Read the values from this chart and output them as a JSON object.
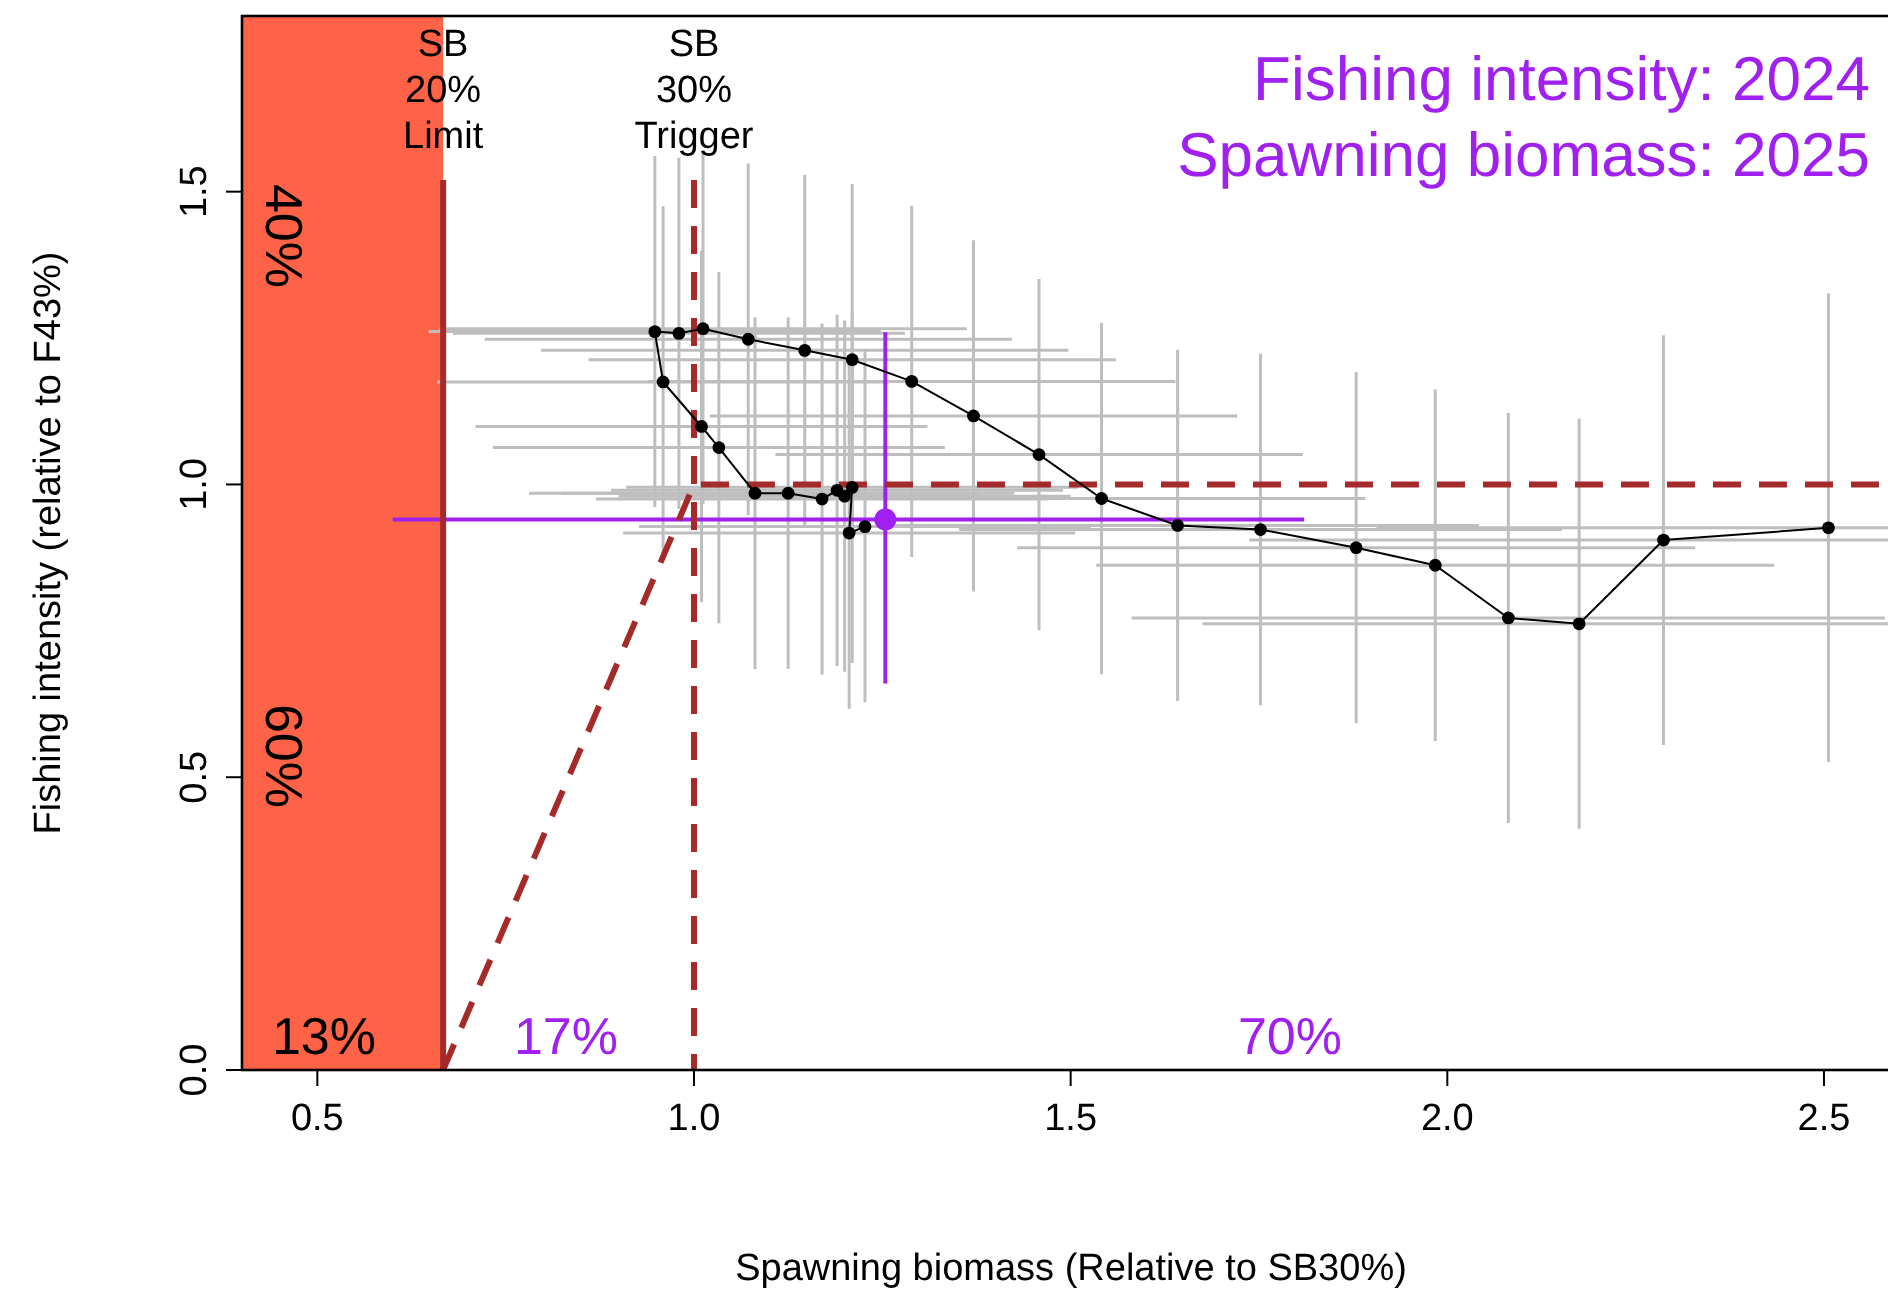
{
  "chart_data": {
    "type": "scatter",
    "title": "Fishing intensity: 2024",
    "subtitle": "Spawning biomass: 2025",
    "xlabel": "Spawning biomass (Relative to SB30%)",
    "ylabel": "Fishing intensity (relative to F43%)",
    "xlim": [
      0.4,
      2.585
    ],
    "ylim": [
      0,
      1.8
    ],
    "xticks": [
      {
        "value": 0.5,
        "label": "0.5"
      },
      {
        "value": 1,
        "label": "1.0"
      },
      {
        "value": 1.5,
        "label": "1.5"
      },
      {
        "value": 2,
        "label": "2.0"
      },
      {
        "value": 2.5,
        "label": "2.5"
      }
    ],
    "yticks": [
      {
        "value": 0,
        "label": "0.0"
      },
      {
        "value": 0.5,
        "label": "0.5"
      },
      {
        "value": 1,
        "label": "1.0"
      },
      {
        "value": 1.5,
        "label": "1.5"
      }
    ],
    "marker": "circle",
    "series": [
      {
        "type": "line",
        "color": "#a52a2a",
        "line_style": "dashed",
        "marker": "none",
        "x": [
          0.667,
          1.0,
          2.585
        ],
        "values": [
          0,
          1,
          1
        ]
      },
      {
        "type": "line",
        "color": "#000000",
        "marker": "circle",
        "x": [
          2.506,
          2.287,
          2.175,
          2.081,
          1.984,
          1.879,
          1.752,
          1.642,
          1.541,
          1.458,
          1.371,
          1.289,
          1.21,
          1.147,
          1.072,
          1.012,
          0.98,
          0.948,
          0.959,
          1.01,
          1.033,
          1.081,
          1.125,
          1.17,
          1.19,
          1.2,
          1.21,
          1.206,
          1.227
        ],
        "values": [
          0.926,
          0.905,
          0.762,
          0.772,
          0.862,
          0.892,
          0.923,
          0.93,
          0.976,
          1.051,
          1.117,
          1.176,
          1.213,
          1.229,
          1.248,
          1.266,
          1.258,
          1.261,
          1.175,
          1.099,
          1.063,
          0.985,
          0.985,
          0.975,
          0.99,
          0.98,
          0.995,
          0.917,
          0.928
        ],
        "errors": [
          0.4,
          0.35,
          0.35,
          0.35,
          0.3,
          0.3,
          0.3,
          0.3,
          0.3,
          0.3,
          0.3,
          0.3,
          0.3,
          0.3,
          0.3,
          0.3,
          0.3,
          0.3,
          0.3,
          0.3,
          0.3,
          0.3,
          0.3,
          0.3,
          0.3,
          0.3,
          0.3,
          0.3,
          0.3
        ],
        "xerrors": [
          0.6,
          0.55,
          0.5,
          0.5,
          0.45,
          0.45,
          0.4,
          0.4,
          0.35,
          0.35,
          0.35,
          0.35,
          0.35,
          0.35,
          0.35,
          0.35,
          0.3,
          0.3,
          0.3,
          0.3,
          0.3,
          0.3,
          0.3,
          0.3,
          0.3,
          0.3,
          0.3,
          0.3,
          0.3
        ]
      },
      {
        "color": "#a020f0",
        "x": [
          1.254
        ],
        "values": [
          0.94
        ],
        "errors": [
          [
            0.66,
            1.26
          ]
        ],
        "xerrors": [
          [
            0.6,
            1.81
          ]
        ]
      }
    ],
    "ref_lines": [
      {
        "axis": "x",
        "value": 0.667,
        "label": "SB 20% Limit",
        "color": "#a52a2a",
        "line_style": "solid"
      },
      {
        "axis": "x",
        "value": 1.0,
        "label": "SB 30% Trigger",
        "color": "#a52a2a",
        "line_style": "dashed"
      }
    ],
    "bands": [
      {
        "axis": "x",
        "from": 0.4,
        "to": 0.667,
        "color": "#ff6347"
      }
    ],
    "annotations": [
      "40%",
      "60%",
      "13%",
      "17%",
      "70%"
    ]
  }
}
